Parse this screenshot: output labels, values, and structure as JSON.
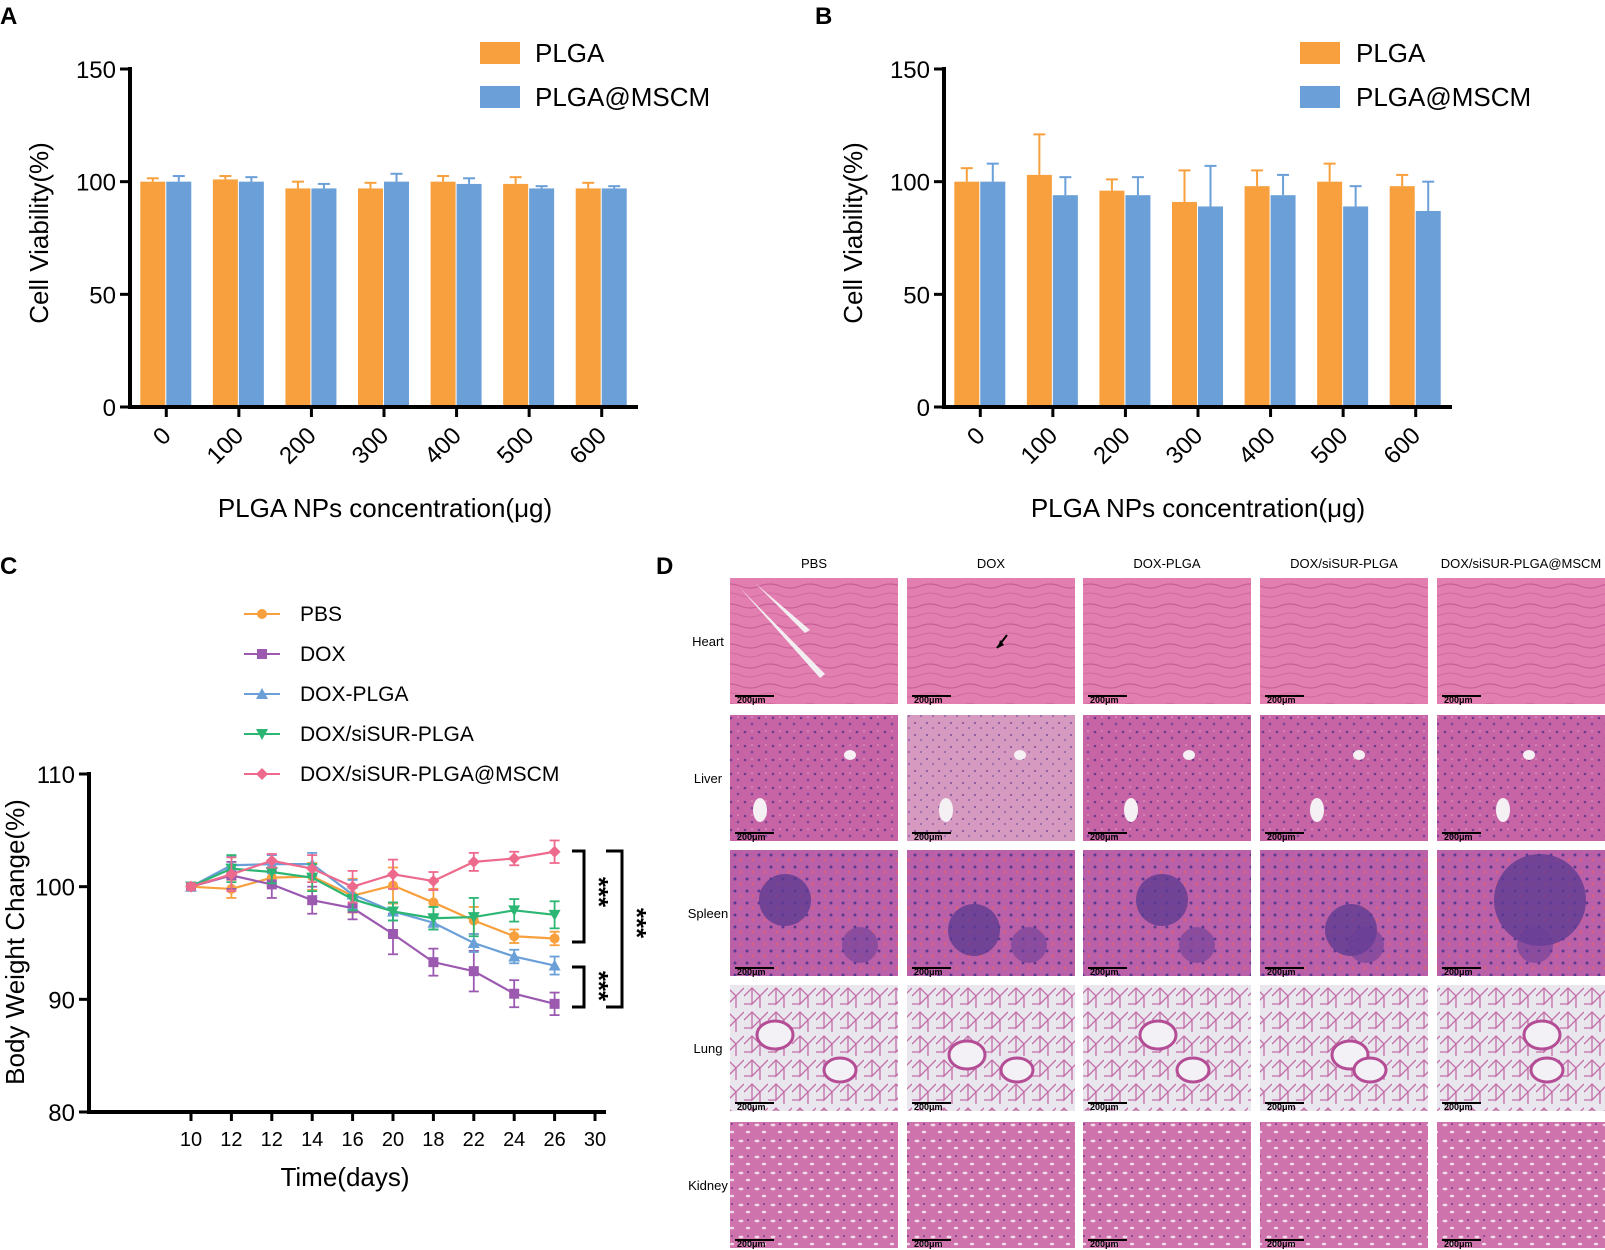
{
  "panels": {
    "A": "A",
    "B": "B",
    "C": "C",
    "D": "D"
  },
  "colors": {
    "plga": "#F7A03D",
    "mscm": "#6A9FD8",
    "pbs": "#F7A03D",
    "dox": "#9B59B0",
    "doxplga": "#6A9FD8",
    "doxsisur": "#2BB673",
    "doxsisurmscm": "#EE6A8D",
    "histo_base": "#d46fa2"
  },
  "chart_data": [
    {
      "id": "A",
      "type": "bar",
      "title": "",
      "xlabel": "PLGA NPs concentration(μg)",
      "ylabel": "Cell Viability(%)",
      "ylim": [
        0,
        150
      ],
      "yticks": [
        0,
        50,
        100,
        150
      ],
      "categories": [
        "0",
        "100",
        "200",
        "300",
        "400",
        "500",
        "600"
      ],
      "legend_position": "top-right",
      "series": [
        {
          "name": "PLGA",
          "values": [
            100,
            101,
            97,
            97,
            100,
            99,
            97
          ],
          "errors": [
            1.5,
            1.5,
            3,
            2.5,
            2.5,
            3,
            2.5
          ]
        },
        {
          "name": "PLGA@MSCM",
          "values": [
            100,
            100,
            97,
            100,
            99,
            97,
            97
          ],
          "errors": [
            2.5,
            2,
            2,
            3.5,
            2.5,
            1,
            1
          ]
        }
      ]
    },
    {
      "id": "B",
      "type": "bar",
      "title": "",
      "xlabel": "PLGA NPs concentration(μg)",
      "ylabel": "Cell Viability(%)",
      "ylim": [
        0,
        150
      ],
      "yticks": [
        0,
        50,
        100,
        150
      ],
      "categories": [
        "0",
        "100",
        "200",
        "300",
        "400",
        "500",
        "600"
      ],
      "legend_position": "top-right",
      "series": [
        {
          "name": "PLGA",
          "values": [
            100,
            103,
            96,
            91,
            98,
            100,
            98
          ],
          "errors": [
            6,
            18,
            5,
            14,
            7,
            8,
            5
          ]
        },
        {
          "name": "PLGA@MSCM",
          "values": [
            100,
            94,
            94,
            89,
            94,
            89,
            87
          ],
          "errors": [
            8,
            8,
            8,
            18,
            9,
            9,
            13
          ]
        }
      ]
    },
    {
      "id": "C",
      "type": "line",
      "title": "",
      "xlabel": "Time(days)",
      "ylabel": "Body Weight Change(%)",
      "ylim": [
        80,
        110
      ],
      "yticks": [
        80,
        90,
        100,
        110
      ],
      "xticks": [
        "10",
        "12",
        "12",
        "14",
        "16",
        "20",
        "18",
        "22",
        "24",
        "26",
        "30"
      ],
      "legend_position": "top",
      "series": [
        {
          "name": "PBS",
          "values": [
            100,
            99.8,
            100.8,
            100.9,
            99.2,
            100.1,
            98.6,
            97.0,
            95.6,
            95.4
          ],
          "errors": [
            0.3,
            0.8,
            0.8,
            1.2,
            1.5,
            1.6,
            1.2,
            1.2,
            0.6,
            0.6
          ]
        },
        {
          "name": "DOX",
          "values": [
            100,
            101.0,
            100.2,
            98.8,
            98.1,
            95.8,
            93.3,
            92.5,
            90.5,
            89.6
          ],
          "errors": [
            0.3,
            1.2,
            1.2,
            1.2,
            1.0,
            1.8,
            1.2,
            1.8,
            1.2,
            1.0
          ]
        },
        {
          "name": "DOX-PLGA",
          "values": [
            100,
            101.9,
            102.0,
            102.0,
            99.3,
            97.8,
            96.8,
            95.0,
            93.8,
            93.0
          ],
          "errors": [
            0.3,
            0.8,
            0.8,
            1.0,
            1.3,
            0.8,
            0.6,
            0.8,
            0.6,
            0.8
          ]
        },
        {
          "name": "DOX/siSUR-PLGA",
          "values": [
            100,
            101.6,
            101.3,
            100.8,
            98.9,
            97.8,
            97.2,
            97.3,
            97.9,
            97.5
          ],
          "errors": [
            0.3,
            1.2,
            1.0,
            1.2,
            1.0,
            0.8,
            1.0,
            1.7,
            1.0,
            1.2
          ]
        },
        {
          "name": "DOX/siSUR-PLGA@MSCM",
          "values": [
            100,
            101.1,
            102.3,
            101.6,
            100.0,
            101.1,
            100.5,
            102.2,
            102.5,
            103.1
          ],
          "errors": [
            0.3,
            1.5,
            0.6,
            1.2,
            1.4,
            1.3,
            0.8,
            0.8,
            0.6,
            1.0
          ]
        }
      ],
      "annotations": [
        "***",
        "***",
        "***"
      ]
    }
  ],
  "histology": {
    "columns": [
      "PBS",
      "DOX",
      "DOX-PLGA",
      "DOX/siSUR-PLGA",
      "DOX/siSUR-PLGA@MSCM"
    ],
    "rows": [
      "Heart",
      "Liver",
      "Spleen",
      "Lung",
      "Kidney"
    ],
    "scale_bar": "200μm"
  }
}
